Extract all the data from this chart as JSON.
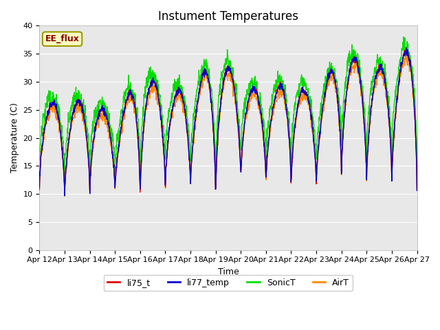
{
  "title": "Instument Temperatures",
  "xlabel": "Time",
  "ylabel": "Temperature (C)",
  "annotation": "EE_flux",
  "ylim": [
    0,
    40
  ],
  "yticks": [
    0,
    5,
    10,
    15,
    20,
    25,
    30,
    35,
    40
  ],
  "line_colors": {
    "li75_t": "#dd0000",
    "li77_temp": "#0000cc",
    "SonicT": "#00dd00",
    "AirT": "#ff8800"
  },
  "line_widths": {
    "li75_t": 1.0,
    "li77_temp": 1.0,
    "SonicT": 1.0,
    "AirT": 1.0
  },
  "legend_labels": [
    "li75_t",
    "li77_temp",
    "SonicT",
    "AirT"
  ],
  "bg_color": "#e8e8e8",
  "fig_bg": "#ffffff",
  "n_points": 1440,
  "x_start": 0,
  "x_end": 15,
  "xtick_positions": [
    0,
    1,
    2,
    3,
    4,
    5,
    6,
    7,
    8,
    9,
    10,
    11,
    12,
    13,
    14,
    15
  ],
  "xtick_labels": [
    "Apr 12",
    "Apr 13",
    "Apr 14",
    "Apr 15",
    "Apr 16",
    "Apr 17",
    "Apr 18",
    "Apr 19",
    "Apr 20",
    "Apr 21",
    "Apr 22",
    "Apr 23",
    "Apr 24",
    "Apr 25",
    "Apr 26",
    "Apr 27"
  ],
  "title_fontsize": 12,
  "label_fontsize": 9,
  "tick_fontsize": 8,
  "legend_fontsize": 9
}
